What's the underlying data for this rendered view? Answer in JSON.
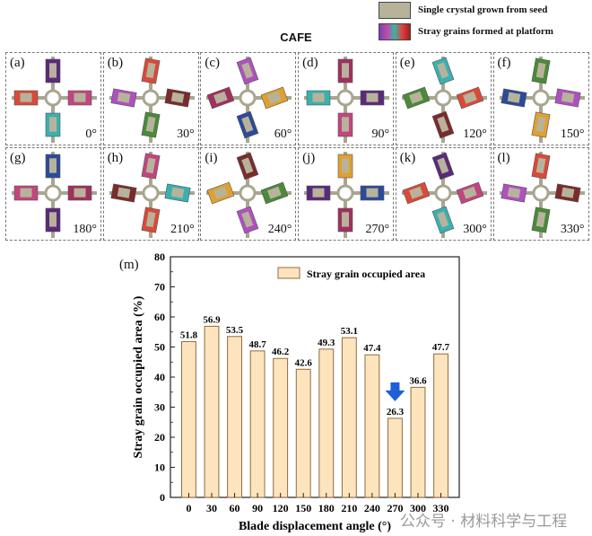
{
  "legend_top": [
    {
      "label": "Single crystal  grown from seed",
      "color": "#b7b39a"
    },
    {
      "label": "Stray grains formed at platform",
      "color": "gradient"
    }
  ],
  "grid_title": "CAFE",
  "panels": [
    {
      "letter": "(a)",
      "angle": "0°"
    },
    {
      "letter": "(b)",
      "angle": "30°"
    },
    {
      "letter": "(c)",
      "angle": "60°"
    },
    {
      "letter": "(d)",
      "angle": "90°"
    },
    {
      "letter": "(e)",
      "angle": "120°"
    },
    {
      "letter": "(f)",
      "angle": "150°"
    },
    {
      "letter": "(g)",
      "angle": "180°"
    },
    {
      "letter": "(h)",
      "angle": "210°"
    },
    {
      "letter": "(i)",
      "angle": "240°"
    },
    {
      "letter": "(j)",
      "angle": "270°"
    },
    {
      "letter": "(k)",
      "angle": "300°"
    },
    {
      "letter": "(l)",
      "angle": "330°"
    }
  ],
  "chart_label": "(m)",
  "chart_data": {
    "type": "bar",
    "categories": [
      "0",
      "30",
      "60",
      "90",
      "120",
      "150",
      "180",
      "210",
      "240",
      "270",
      "300",
      "330"
    ],
    "values": [
      51.8,
      56.9,
      53.5,
      48.7,
      46.2,
      42.6,
      49.3,
      53.1,
      47.4,
      26.3,
      36.6,
      47.7
    ],
    "value_labels": [
      "51.8",
      "56.9",
      "53.5",
      "48.7",
      "46.2",
      "42.6",
      "49.3",
      "53.1",
      "47.4",
      "26.3",
      "36.6",
      "47.7"
    ],
    "series": [
      {
        "name": "Stray grain occupied area",
        "values": [
          51.8,
          56.9,
          53.5,
          48.7,
          46.2,
          42.6,
          49.3,
          53.1,
          47.4,
          26.3,
          36.6,
          47.7
        ]
      }
    ],
    "xlabel": "Blade displacement angle (°)",
    "ylabel": "Stray grain occupied area (%)",
    "ylim": [
      0,
      80
    ],
    "yticks": [
      "0",
      "10",
      "20",
      "30",
      "40",
      "50",
      "60",
      "70",
      "80"
    ],
    "bar_fill": "#fde4bd",
    "bar_stroke": "#8f6b3e",
    "highlight_category": "270",
    "highlight_arrow_color": "#1e5fd6",
    "legend_position": "top-right",
    "grid": false
  },
  "watermark": "公众号 · 材料科学与工程"
}
